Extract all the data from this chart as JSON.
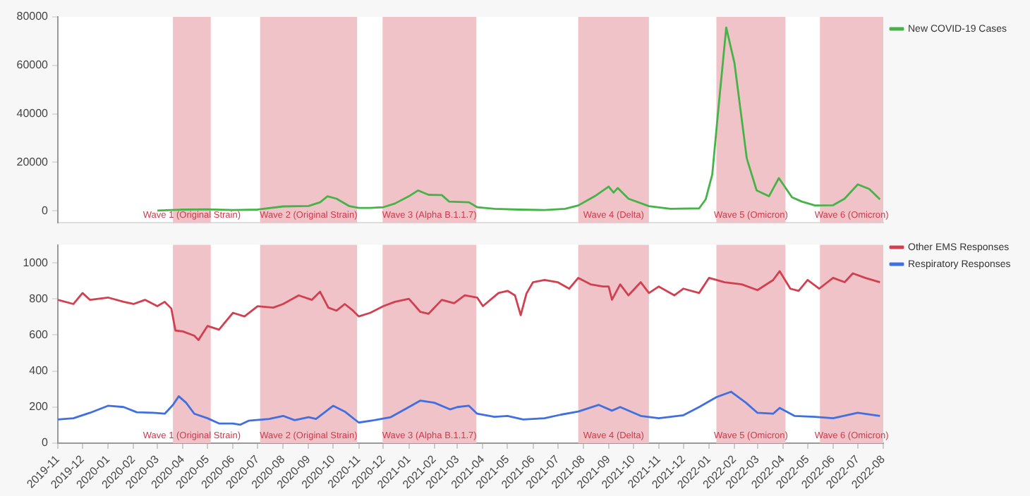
{
  "chart_data": [
    {
      "type": "line",
      "xlim": [
        "2019-11",
        "2022-08"
      ],
      "tick_labels": "y",
      "ylim": [
        -5000,
        80000
      ],
      "yticks": [
        0,
        20000,
        40000,
        60000,
        80000
      ],
      "grid": false,
      "legend": "right",
      "marker": "none",
      "line_style": "solid",
      "series": [
        {
          "name": "New COVID-19 Cases",
          "color": "#45b347",
          "x": [
            "2020-03-01",
            "2020-04-01",
            "2020-05-01",
            "2020-06-01",
            "2020-07-01",
            "2020-08-01",
            "2020-09-01",
            "2020-09-15",
            "2020-09-24",
            "2020-10-05",
            "2020-10-20",
            "2020-11-01",
            "2020-11-15",
            "2020-12-01",
            "2020-12-15",
            "2021-01-01",
            "2021-01-12",
            "2021-01-25",
            "2021-02-10",
            "2021-02-19",
            "2021-03-15",
            "2021-03-25",
            "2021-04-15",
            "2021-05-15",
            "2021-06-15",
            "2021-07-10",
            "2021-07-26",
            "2021-08-15",
            "2021-09-01",
            "2021-09-07",
            "2021-09-12",
            "2021-09-25",
            "2021-10-20",
            "2021-11-15",
            "2021-12-20",
            "2021-12-28",
            "2022-01-05",
            "2022-01-12",
            "2022-01-22",
            "2022-02-01",
            "2022-02-16",
            "2022-02-28",
            "2022-03-15",
            "2022-03-27",
            "2022-04-12",
            "2022-04-24",
            "2022-05-10",
            "2022-06-01",
            "2022-06-15",
            "2022-07-01",
            "2022-07-15",
            "2022-07-28"
          ],
          "values": [
            100,
            500,
            600,
            300,
            500,
            1800,
            2000,
            3500,
            6000,
            5000,
            2000,
            1200,
            1200,
            1500,
            3000,
            6000,
            8400,
            6600,
            6500,
            3800,
            3500,
            1500,
            800,
            500,
            300,
            800,
            2200,
            6000,
            10000,
            7500,
            9400,
            5000,
            1900,
            800,
            1000,
            4700,
            15000,
            40500,
            75600,
            61000,
            21600,
            8400,
            6000,
            13500,
            5600,
            3800,
            2200,
            2300,
            5000,
            10900,
            9000,
            4700
          ]
        }
      ],
      "bands": [
        {
          "axis": "x",
          "from": "2020-03-20",
          "to": "2020-05-05",
          "label": "Wave 1 (Original Strain)",
          "color": "#f0c3c8"
        },
        {
          "axis": "x",
          "from": "2020-07-04",
          "to": "2020-10-30",
          "label": "Wave 2 (Original Strain)",
          "color": "#f0c3c8"
        },
        {
          "axis": "x",
          "from": "2020-11-30",
          "to": "2021-03-24",
          "label": "Wave 3 (Alpha B.1.1.7)",
          "color": "#f0c3c8"
        },
        {
          "axis": "x",
          "from": "2021-07-26",
          "to": "2021-10-20",
          "label": "Wave 4 (Delta)",
          "color": "#f0c3c8"
        },
        {
          "axis": "x",
          "from": "2022-01-10",
          "to": "2022-04-04",
          "label": "Wave 5 (Omicron)",
          "color": "#f0c3c8"
        },
        {
          "axis": "x",
          "from": "2022-05-16",
          "to": "2022-08-01",
          "label": "Wave 6 (Omicron)",
          "color": "#f0c3c8"
        }
      ]
    },
    {
      "type": "line",
      "xlim": [
        "2019-11",
        "2022-08"
      ],
      "xticks": [
        "2019-11",
        "2019-12",
        "2020-01",
        "2020-02",
        "2020-03",
        "2020-04",
        "2020-05",
        "2020-06",
        "2020-07",
        "2020-08",
        "2020-09",
        "2020-10",
        "2020-11",
        "2020-12",
        "2021-01",
        "2021-02",
        "2021-03",
        "2021-04",
        "2021-05",
        "2021-06",
        "2021-07",
        "2021-08",
        "2021-09",
        "2021-10",
        "2021-11",
        "2021-12",
        "2022-01",
        "2022-02",
        "2022-03",
        "2022-04",
        "2022-05",
        "2022-06",
        "2022-07",
        "2022-08"
      ],
      "ylim": [
        0,
        1100
      ],
      "yticks": [
        0,
        200,
        400,
        600,
        800,
        1000
      ],
      "grid": false,
      "legend": "top right",
      "marker": "none",
      "line_style": "solid",
      "series": [
        {
          "name": "Other EMS Responses",
          "color": "#d2404f",
          "x": [
            "2019-11-01",
            "2019-11-20",
            "2019-12-01",
            "2019-12-10",
            "2020-01-01",
            "2020-01-20",
            "2020-02-01",
            "2020-02-15",
            "2020-03-01",
            "2020-03-10",
            "2020-03-18",
            "2020-03-23",
            "2020-04-01",
            "2020-04-15",
            "2020-04-20",
            "2020-05-01",
            "2020-05-15",
            "2020-06-01",
            "2020-06-15",
            "2020-07-01",
            "2020-07-20",
            "2020-08-01",
            "2020-08-20",
            "2020-09-05",
            "2020-09-15",
            "2020-09-25",
            "2020-10-05",
            "2020-10-15",
            "2020-10-25",
            "2020-11-01",
            "2020-11-15",
            "2020-12-01",
            "2020-12-15",
            "2021-01-01",
            "2021-01-15",
            "2021-01-25",
            "2021-02-10",
            "2021-02-25",
            "2021-03-10",
            "2021-03-25",
            "2021-04-01",
            "2021-04-20",
            "2021-05-01",
            "2021-05-10",
            "2021-05-17",
            "2021-05-24",
            "2021-06-01",
            "2021-06-15",
            "2021-07-01",
            "2021-07-15",
            "2021-07-26",
            "2021-08-10",
            "2021-08-25",
            "2021-09-01",
            "2021-09-05",
            "2021-09-15",
            "2021-09-25",
            "2021-10-10",
            "2021-10-20",
            "2021-11-01",
            "2021-11-20",
            "2021-12-01",
            "2021-12-20",
            "2022-01-01",
            "2022-01-20",
            "2022-02-10",
            "2022-03-01",
            "2022-03-20",
            "2022-03-28",
            "2022-04-10",
            "2022-04-20",
            "2022-05-01",
            "2022-05-15",
            "2022-06-01",
            "2022-06-15",
            "2022-06-25",
            "2022-07-10",
            "2022-07-28"
          ],
          "values": [
            795,
            772,
            833,
            795,
            808,
            784,
            772,
            795,
            760,
            784,
            747,
            625,
            620,
            596,
            572,
            650,
            630,
            723,
            703,
            760,
            752,
            772,
            820,
            795,
            840,
            752,
            735,
            772,
            735,
            703,
            723,
            760,
            784,
            801,
            728,
            718,
            795,
            776,
            820,
            808,
            760,
            833,
            845,
            820,
            710,
            830,
            893,
            905,
            893,
            857,
            917,
            881,
            869,
            869,
            796,
            881,
            820,
            893,
            833,
            869,
            820,
            857,
            833,
            917,
            893,
            881,
            849,
            905,
            954,
            857,
            845,
            905,
            857,
            917,
            893,
            942,
            917,
            893
          ]
        },
        {
          "name": "Respiratory Responses",
          "color": "#3f6fe0",
          "x": [
            "2019-11-01",
            "2019-11-20",
            "2019-12-10",
            "2020-01-01",
            "2020-01-20",
            "2020-02-05",
            "2020-02-25",
            "2020-03-10",
            "2020-03-20",
            "2020-03-27",
            "2020-04-05",
            "2020-04-15",
            "2020-05-01",
            "2020-05-15",
            "2020-06-01",
            "2020-06-10",
            "2020-06-20",
            "2020-07-15",
            "2020-08-01",
            "2020-08-15",
            "2020-09-01",
            "2020-09-10",
            "2020-10-01",
            "2020-10-15",
            "2020-11-01",
            "2020-11-20",
            "2020-12-10",
            "2021-01-01",
            "2021-01-15",
            "2021-02-01",
            "2021-02-20",
            "2021-03-01",
            "2021-03-15",
            "2021-03-25",
            "2021-04-15",
            "2021-05-01",
            "2021-05-20",
            "2021-06-15",
            "2021-07-05",
            "2021-07-26",
            "2021-08-20",
            "2021-09-05",
            "2021-09-15",
            "2021-10-10",
            "2021-11-01",
            "2021-12-01",
            "2021-12-20",
            "2022-01-10",
            "2022-01-28",
            "2022-02-15",
            "2022-03-01",
            "2022-03-20",
            "2022-03-28",
            "2022-04-15",
            "2022-05-10",
            "2022-06-01",
            "2022-07-01",
            "2022-07-28"
          ],
          "values": [
            131,
            138,
            168,
            207,
            200,
            171,
            168,
            163,
            212,
            260,
            224,
            163,
            138,
            109,
            109,
            102,
            124,
            134,
            151,
            127,
            144,
            134,
            207,
            175,
            114,
            127,
            144,
            200,
            236,
            224,
            187,
            200,
            207,
            163,
            146,
            151,
            131,
            138,
            158,
            175,
            212,
            180,
            200,
            151,
            138,
            155,
            200,
            255,
            285,
            224,
            168,
            163,
            195,
            151,
            146,
            138,
            168,
            151
          ]
        }
      ],
      "bands": [
        {
          "axis": "x",
          "from": "2020-03-20",
          "to": "2020-05-05",
          "label": "Wave 1 (Original Strain)",
          "color": "#f0c3c8"
        },
        {
          "axis": "x",
          "from": "2020-07-04",
          "to": "2020-10-30",
          "label": "Wave 2 (Original Strain)",
          "color": "#f0c3c8"
        },
        {
          "axis": "x",
          "from": "2020-11-30",
          "to": "2021-03-24",
          "label": "Wave 3 (Alpha B.1.1.7)",
          "color": "#f0c3c8"
        },
        {
          "axis": "x",
          "from": "2021-07-26",
          "to": "2021-10-20",
          "label": "Wave 4 (Delta)",
          "color": "#f0c3c8"
        },
        {
          "axis": "x",
          "from": "2022-01-10",
          "to": "2022-04-04",
          "label": "Wave 5 (Omicron)",
          "color": "#f0c3c8"
        },
        {
          "axis": "x",
          "from": "2022-05-16",
          "to": "2022-08-01",
          "label": "Wave 6 (Omicron)",
          "color": "#f0c3c8"
        }
      ]
    }
  ]
}
